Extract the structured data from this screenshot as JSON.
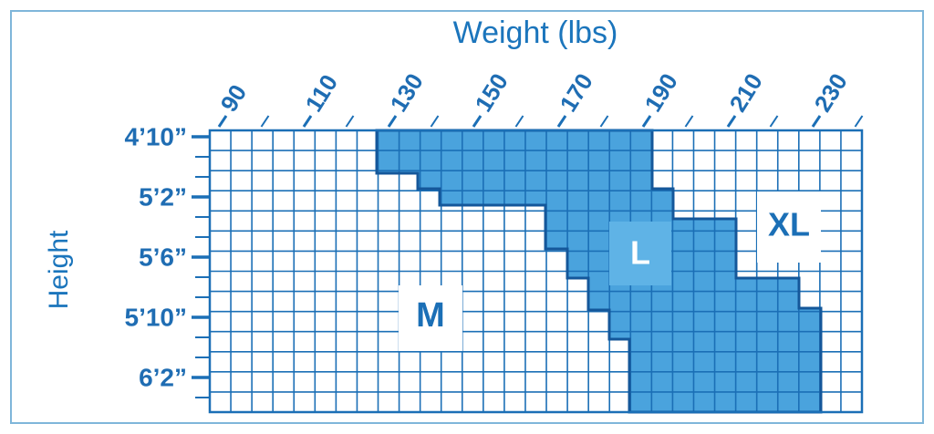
{
  "title": "Weight (lbs)",
  "y_axis_label": "Height",
  "weight_ticks": [
    "90",
    "110",
    "130",
    "150",
    "170",
    "190",
    "210",
    "230"
  ],
  "height_ticks": [
    "4’10”",
    "5’2”",
    "5’6”",
    "5’10”",
    "6’2”"
  ],
  "regions": {
    "medium": "M",
    "large": "L",
    "extra_large": "XL"
  }
}
